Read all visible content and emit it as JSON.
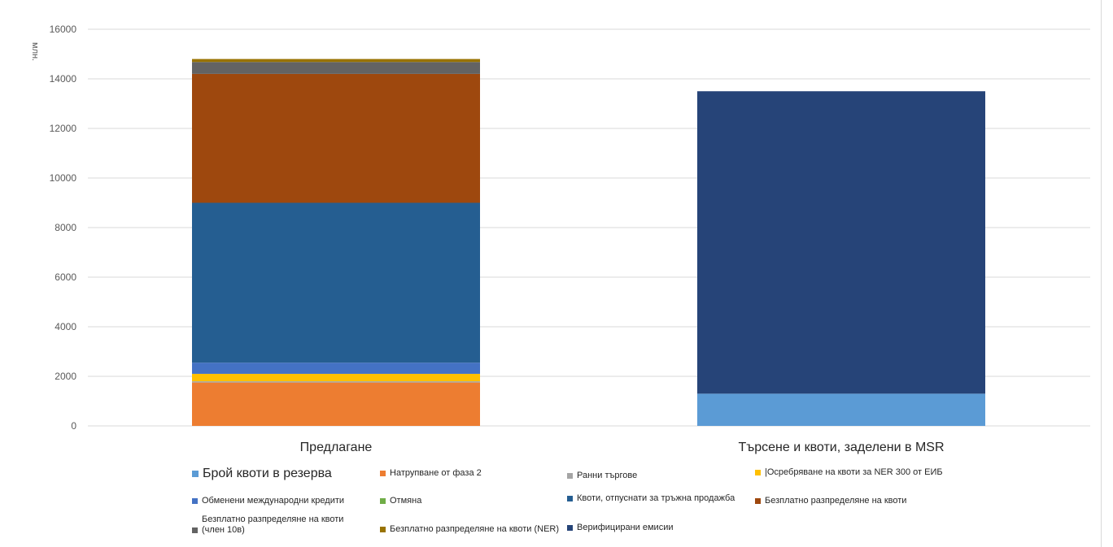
{
  "chart_data": {
    "type": "bar",
    "stacked": true,
    "ylabel": "млн.",
    "ylim": [
      0,
      16000
    ],
    "yticks": [
      0,
      2000,
      4000,
      6000,
      8000,
      10000,
      12000,
      14000,
      16000
    ],
    "grid": true,
    "legend_position": "bottom",
    "categories": [
      "Предлагане",
      "Търсене и квоти, заделени в MSR"
    ],
    "series": [
      {
        "name": "Брой квоти в резерва",
        "color": "#5b9bd5",
        "values": [
          0,
          1300
        ]
      },
      {
        "name": "Натрупване от фаза 2",
        "color": "#ed7d31",
        "values": [
          1750,
          0
        ]
      },
      {
        "name": "Ранни търгове",
        "color": "#a5a5a5",
        "values": [
          50,
          0
        ]
      },
      {
        "name": "|Осребряване на квоти за NER 300 от ЕИБ",
        "color": "#ffc000",
        "values": [
          300,
          0
        ]
      },
      {
        "name": "Обменени международни кредити",
        "color": "#4472c4",
        "values": [
          450,
          0
        ]
      },
      {
        "name": "Отмяна",
        "color": "#70ad47",
        "values": [
          0,
          0
        ]
      },
      {
        "name": "Квоти, отпуснати за тръжна продажба",
        "color": "#255e91",
        "values": [
          6450,
          0
        ]
      },
      {
        "name": "Безплатно разпределяне на квоти",
        "color": "#9e480e",
        "values": [
          5200,
          0
        ]
      },
      {
        "name": "Безплатно разпределяне на квоти (член 10в)",
        "color": "#636363",
        "values": [
          480,
          0
        ]
      },
      {
        "name": "Безплатно разпределяне на квоти (NER)",
        "color": "#997300",
        "values": [
          120,
          0
        ]
      },
      {
        "name": "Верифицирани емисии",
        "color": "#264478",
        "values": [
          0,
          12200
        ]
      }
    ]
  }
}
